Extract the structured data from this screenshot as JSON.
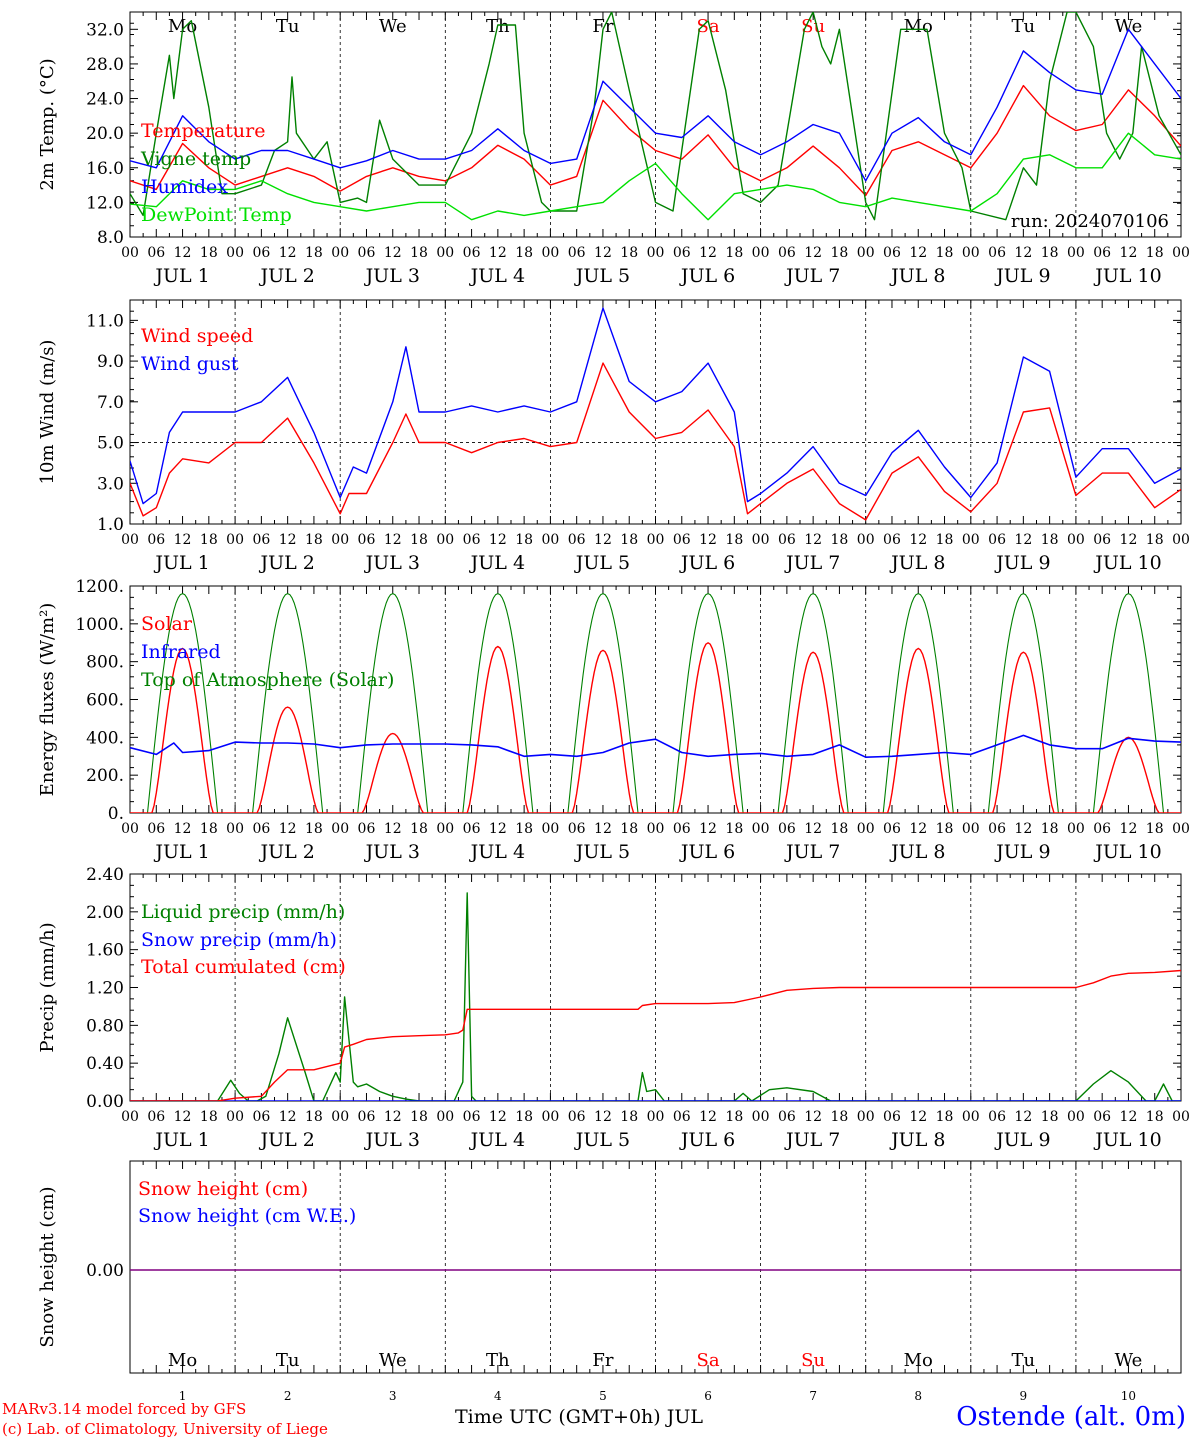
{
  "footer": {
    "model": "MARv3.14 model forced by GFS",
    "lab": "(c) Lab. of Climatology, University of Liege",
    "time_axis": "Time UTC (GMT+0h) JUL",
    "station": "Ostende (alt. 0m)"
  },
  "colors": {
    "red": "#ff0000",
    "green": "#008000",
    "blue": "#0000ff",
    "lightgreen": "#00e000",
    "purple": "#800080",
    "weekend": "#ff0000"
  },
  "chart_data": [
    {
      "type": "line",
      "ylabel": "2m Temp. (°C)",
      "ylim": [
        8,
        34
      ],
      "yticks": [
        "8.0",
        "12.0",
        "16.0",
        "20.0",
        "24.0",
        "28.0",
        "32.0"
      ],
      "day_names": [
        "Mo",
        "Tu",
        "We",
        "Th",
        "Fr",
        "Sa",
        "Su",
        "Mo",
        "Tu",
        "We"
      ],
      "weekend_days": [
        5,
        6
      ],
      "x_hours_tick_labels": [
        "00",
        "06",
        "12",
        "18"
      ],
      "x_day_labels": [
        "JUL  1",
        "JUL  2",
        "JUL  3",
        "JUL  4",
        "JUL  5",
        "JUL  6",
        "JUL  7",
        "JUL  8",
        "JUL  9",
        "JUL 10"
      ],
      "annotation": "run: 2024070106",
      "series": [
        {
          "name": "Temperature",
          "color": "red",
          "x": [
            0,
            6,
            12,
            18,
            24,
            30,
            36,
            42,
            48,
            54,
            60,
            66,
            72,
            78,
            84,
            90,
            96,
            102,
            108,
            114,
            120,
            126,
            132,
            138,
            144,
            150,
            156,
            162,
            168,
            174,
            180,
            186,
            192,
            198,
            204,
            210,
            216,
            222,
            228,
            234,
            240
          ],
          "values": [
            14.5,
            13.5,
            18.8,
            16,
            14,
            15,
            16,
            15,
            13.3,
            15,
            16,
            15,
            14.5,
            16,
            18.6,
            17,
            14,
            15,
            23.8,
            20.5,
            18,
            17,
            19.8,
            16,
            14.5,
            16,
            18.5,
            16,
            12.8,
            18,
            19,
            17.5,
            16,
            20,
            25.5,
            22,
            20.3,
            21,
            25,
            22,
            18.5
          ]
        },
        {
          "name": "Vigne temp",
          "color": "green",
          "x": [
            0,
            3,
            6,
            9,
            10,
            12,
            14,
            18,
            21,
            24,
            30,
            33,
            36,
            37,
            38,
            42,
            45,
            48,
            52,
            54,
            57,
            60,
            66,
            72,
            78,
            82,
            84,
            88,
            90,
            94,
            96,
            102,
            106,
            108,
            110,
            114,
            120,
            124,
            130,
            132,
            136,
            140,
            144,
            148,
            154,
            156,
            158,
            160,
            162,
            168,
            170,
            176,
            182,
            186,
            190,
            192,
            200,
            204,
            207,
            210,
            214,
            216,
            220,
            223,
            226,
            229,
            231,
            235,
            240
          ],
          "values": [
            13,
            10.5,
            20,
            29,
            24,
            32,
            33,
            23,
            13,
            13,
            14,
            18,
            19,
            26.5,
            20,
            17,
            19,
            12,
            12.5,
            12,
            21.5,
            17,
            14,
            14,
            20,
            28,
            32.5,
            32.5,
            20,
            12,
            11,
            11,
            23,
            32,
            34,
            25,
            12,
            11,
            32,
            33,
            25,
            13,
            12,
            14,
            32,
            34,
            30,
            28,
            32,
            12,
            10,
            32,
            32,
            20,
            16,
            11,
            10,
            16,
            14,
            26,
            34,
            34,
            30,
            20,
            17,
            20,
            30,
            22,
            17.5
          ]
        },
        {
          "name": "Humidex",
          "color": "blue",
          "x": [
            0,
            6,
            12,
            18,
            24,
            30,
            36,
            42,
            48,
            54,
            60,
            66,
            72,
            78,
            84,
            90,
            96,
            102,
            108,
            114,
            120,
            126,
            132,
            138,
            144,
            150,
            156,
            162,
            168,
            174,
            180,
            186,
            192,
            198,
            204,
            210,
            216,
            222,
            228,
            234,
            240
          ],
          "values": [
            16.8,
            16,
            22,
            19,
            17,
            18,
            18,
            17,
            16,
            16.8,
            18,
            17,
            17,
            18,
            20.5,
            18,
            16.5,
            17,
            26,
            23,
            20,
            19.5,
            22,
            19,
            17.5,
            19,
            21,
            20,
            14.5,
            20,
            21.8,
            19,
            17.5,
            23,
            29.5,
            27,
            25,
            24.5,
            32,
            28,
            24
          ]
        },
        {
          "name": "DewPoint Temp",
          "color": "lightgreen",
          "x": [
            0,
            6,
            12,
            18,
            24,
            30,
            36,
            42,
            48,
            54,
            60,
            66,
            72,
            78,
            84,
            90,
            96,
            102,
            108,
            114,
            120,
            126,
            132,
            138,
            144,
            150,
            156,
            162,
            168,
            174,
            180,
            186,
            192,
            198,
            204,
            210,
            216,
            222,
            228,
            234,
            240
          ],
          "values": [
            11.8,
            11.5,
            14.5,
            13.5,
            13.5,
            14.5,
            13,
            12,
            11.5,
            11,
            11.5,
            12,
            12,
            10,
            11,
            10.5,
            11,
            11.5,
            12,
            14.5,
            16.5,
            13,
            10,
            13,
            13.5,
            14,
            13.5,
            12,
            11.5,
            12.5,
            12,
            11.5,
            11,
            13,
            17,
            17.5,
            16,
            16,
            20,
            17.5,
            17
          ]
        }
      ]
    },
    {
      "type": "line",
      "ylabel": "10m Wind (m/s)",
      "ylim": [
        1,
        12
      ],
      "yticks": [
        "1.0",
        "3.0",
        "5.0",
        "7.0",
        "9.0",
        "11.0"
      ],
      "reference_line": 5,
      "x_hours_tick_labels": [
        "00",
        "06",
        "12",
        "18"
      ],
      "x_day_labels": [
        "JUL  1",
        "JUL  2",
        "JUL  3",
        "JUL  4",
        "JUL  5",
        "JUL  6",
        "JUL  7",
        "JUL  8",
        "JUL  9",
        "JUL 10"
      ],
      "series": [
        {
          "name": "Wind speed",
          "color": "red",
          "x": [
            0,
            3,
            6,
            9,
            12,
            18,
            24,
            30,
            36,
            42,
            48,
            50,
            54,
            60,
            63,
            66,
            72,
            78,
            84,
            90,
            96,
            102,
            108,
            114,
            120,
            126,
            132,
            138,
            141,
            144,
            150,
            156,
            162,
            168,
            174,
            180,
            186,
            192,
            198,
            204,
            210,
            216,
            222,
            228,
            234,
            240
          ],
          "values": [
            3,
            1.4,
            1.8,
            3.5,
            4.2,
            4,
            5,
            5,
            6.2,
            4,
            1.5,
            2.5,
            2.5,
            5,
            6.4,
            5,
            5,
            4.5,
            5,
            5.2,
            4.8,
            5,
            8.9,
            6.5,
            5.2,
            5.5,
            6.6,
            4.8,
            1.5,
            2,
            3,
            3.7,
            2,
            1.2,
            3.5,
            4.3,
            2.6,
            1.6,
            3,
            6.5,
            6.7,
            2.4,
            3.5,
            3.5,
            1.8,
            2.7
          ]
        },
        {
          "name": "Wind gust",
          "color": "blue",
          "x": [
            0,
            3,
            6,
            9,
            12,
            18,
            24,
            30,
            36,
            42,
            48,
            51,
            54,
            60,
            63,
            66,
            72,
            78,
            84,
            90,
            96,
            102,
            108,
            114,
            120,
            126,
            132,
            138,
            141,
            144,
            150,
            156,
            162,
            168,
            174,
            180,
            186,
            192,
            198,
            204,
            210,
            216,
            222,
            228,
            234,
            240
          ],
          "values": [
            4.1,
            2,
            2.5,
            5.5,
            6.5,
            6.5,
            6.5,
            7,
            8.2,
            5.5,
            2.3,
            3.8,
            3.5,
            7,
            9.7,
            6.5,
            6.5,
            6.8,
            6.5,
            6.8,
            6.5,
            7,
            11.6,
            8,
            7,
            7.5,
            8.9,
            6.5,
            2.1,
            2.5,
            3.5,
            4.8,
            3,
            2.4,
            4.5,
            5.6,
            3.8,
            2.3,
            4,
            9.2,
            8.5,
            3.3,
            4.7,
            4.7,
            3,
            3.7
          ]
        }
      ]
    },
    {
      "type": "line",
      "ylabel": "Energy fluxes (W/m²)",
      "ylim": [
        0,
        1200
      ],
      "yticks": [
        "0.",
        "200.",
        "400.",
        "600.",
        "800.",
        "1000.",
        "1200."
      ],
      "x_hours_tick_labels": [
        "00",
        "06",
        "12",
        "18"
      ],
      "x_day_labels": [
        "JUL  1",
        "JUL  2",
        "JUL  3",
        "JUL  4",
        "JUL  5",
        "JUL  6",
        "JUL  7",
        "JUL  8",
        "JUL  9",
        "JUL 10"
      ],
      "toa_peak_w_m2": 1160,
      "daily_solar_peaks_w_m2": [
        870,
        560,
        420,
        880,
        860,
        900,
        850,
        870,
        850,
        400
      ],
      "series": [
        {
          "name": "Solar",
          "color": "red"
        },
        {
          "name": "Infrared",
          "color": "blue",
          "x": [
            0,
            6,
            10,
            12,
            18,
            24,
            30,
            36,
            42,
            48,
            54,
            60,
            66,
            72,
            78,
            84,
            90,
            96,
            102,
            108,
            114,
            120,
            126,
            132,
            138,
            144,
            150,
            156,
            162,
            168,
            174,
            180,
            186,
            192,
            198,
            204,
            210,
            216,
            222,
            228,
            234,
            240
          ],
          "values": [
            345,
            310,
            370,
            320,
            330,
            375,
            370,
            370,
            365,
            345,
            360,
            365,
            365,
            365,
            360,
            350,
            300,
            310,
            300,
            320,
            370,
            390,
            320,
            300,
            310,
            315,
            300,
            310,
            360,
            295,
            300,
            310,
            320,
            310,
            360,
            410,
            360,
            340,
            340,
            395,
            380,
            375
          ]
        },
        {
          "name": "Top of Atmosphere (Solar)",
          "color": "green"
        }
      ]
    },
    {
      "type": "line",
      "ylabel": "Precip (mm/h)",
      "ylim": [
        0,
        2.4
      ],
      "yticks": [
        "0.00",
        "0.40",
        "0.80",
        "1.20",
        "1.60",
        "2.00",
        "2.40"
      ],
      "x_hours_tick_labels": [
        "00",
        "06",
        "12",
        "18"
      ],
      "x_day_labels": [
        "JUL  1",
        "JUL  2",
        "JUL  3",
        "JUL  4",
        "JUL  5",
        "JUL  6",
        "JUL  7",
        "JUL  8",
        "JUL  9",
        "JUL 10"
      ],
      "series": [
        {
          "name": "Liquid precip (mm/h)",
          "color": "green",
          "x": [
            0,
            20,
            23,
            25,
            27,
            29,
            31,
            34,
            36,
            40,
            42,
            44,
            47,
            48,
            49,
            51,
            52,
            54,
            57,
            60,
            63,
            66,
            72,
            74,
            76,
            77,
            78,
            79,
            80,
            82,
            84,
            90,
            116,
            117,
            118,
            120,
            122,
            138,
            140,
            142,
            146,
            150,
            156,
            160,
            168,
            216,
            220,
            224,
            228,
            232,
            234,
            236,
            238,
            240
          ],
          "values": [
            0,
            0,
            0.22,
            0.08,
            0,
            0,
            0.05,
            0.5,
            0.88,
            0.3,
            0,
            0,
            0.3,
            0.2,
            1.1,
            0.2,
            0.15,
            0.18,
            0.1,
            0.05,
            0.02,
            0,
            0,
            0,
            0.2,
            2.2,
            0.05,
            0,
            0,
            0,
            0,
            0,
            0,
            0.3,
            0.1,
            0.12,
            0,
            0,
            0.08,
            0,
            0.12,
            0.14,
            0.1,
            0,
            0,
            0,
            0.18,
            0.32,
            0.2,
            0,
            0,
            0.18,
            0,
            0
          ]
        },
        {
          "name": "Snow precip (mm/h)",
          "color": "blue",
          "x": [
            0,
            240
          ],
          "values": [
            0,
            0
          ]
        },
        {
          "name": "Total cumulated (cm)",
          "color": "red",
          "x": [
            0,
            20,
            24,
            30,
            33,
            36,
            42,
            48,
            49,
            51,
            54,
            60,
            66,
            72,
            75,
            76,
            77,
            78,
            90,
            102,
            116,
            117,
            120,
            132,
            138,
            144,
            150,
            156,
            162,
            168,
            180,
            192,
            204,
            216,
            220,
            224,
            228,
            234,
            240
          ],
          "values": [
            0,
            0,
            0.03,
            0.05,
            0.2,
            0.33,
            0.33,
            0.4,
            0.57,
            0.6,
            0.65,
            0.68,
            0.69,
            0.7,
            0.72,
            0.75,
            0.97,
            0.97,
            0.97,
            0.97,
            0.97,
            1.01,
            1.03,
            1.03,
            1.04,
            1.1,
            1.17,
            1.19,
            1.2,
            1.2,
            1.2,
            1.2,
            1.2,
            1.2,
            1.25,
            1.32,
            1.35,
            1.36,
            1.38
          ]
        }
      ]
    },
    {
      "type": "line",
      "ylabel": "Snow height (cm)",
      "yticks": [
        "0.00"
      ],
      "day_names": [
        "Mo",
        "Tu",
        "We",
        "Th",
        "Fr",
        "Sa",
        "Su",
        "Mo",
        "Tu",
        "We"
      ],
      "weekend_days": [
        5,
        6
      ],
      "day_numbers": [
        "1",
        "2",
        "3",
        "4",
        "5",
        "6",
        "7",
        "8",
        "9",
        "10"
      ],
      "series": [
        {
          "name": "Snow height (cm)",
          "color": "red",
          "x": [
            0,
            240
          ],
          "values": [
            0,
            0
          ]
        },
        {
          "name": "Snow height (cm W.E.)",
          "color": "blue",
          "x": [
            0,
            240
          ],
          "values": [
            0,
            0
          ]
        }
      ]
    }
  ]
}
